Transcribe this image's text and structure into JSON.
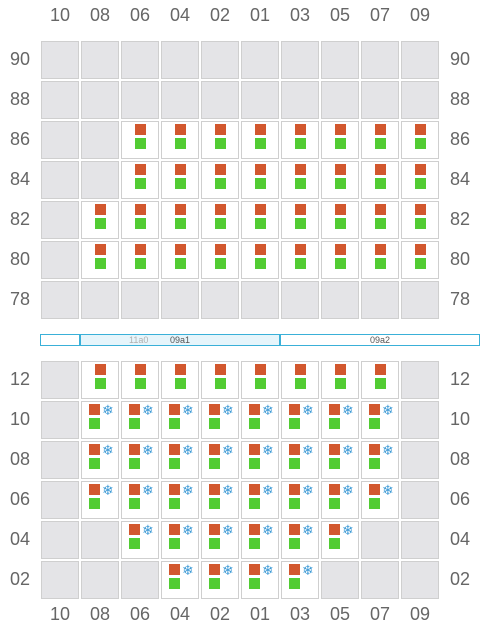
{
  "columns": [
    "10",
    "08",
    "06",
    "04",
    "02",
    "01",
    "03",
    "05",
    "07",
    "09"
  ],
  "deck": {
    "rows": [
      "90",
      "88",
      "86",
      "84",
      "82",
      "80",
      "78"
    ],
    "cells": [
      [
        0,
        0,
        0,
        0,
        0,
        0,
        0,
        0,
        0,
        0
      ],
      [
        0,
        0,
        0,
        0,
        0,
        0,
        0,
        0,
        0,
        0
      ],
      [
        0,
        0,
        1,
        1,
        1,
        1,
        1,
        1,
        1,
        1
      ],
      [
        0,
        0,
        1,
        1,
        1,
        1,
        1,
        1,
        1,
        1
      ],
      [
        0,
        1,
        1,
        1,
        1,
        1,
        1,
        1,
        1,
        1
      ],
      [
        0,
        1,
        1,
        1,
        1,
        1,
        1,
        1,
        1,
        1
      ],
      [
        0,
        0,
        0,
        0,
        0,
        0,
        0,
        0,
        0,
        0
      ]
    ]
  },
  "bays": [
    {
      "label": "09a1",
      "ghost": "11a0",
      "selected": true
    },
    {
      "label": "09a2",
      "selected": false
    }
  ],
  "hold": {
    "rows": [
      "12",
      "10",
      "08",
      "06",
      "04",
      "02"
    ],
    "cells": [
      [
        0,
        1,
        1,
        1,
        1,
        1,
        1,
        1,
        1,
        0
      ],
      [
        0,
        2,
        2,
        2,
        2,
        2,
        2,
        2,
        2,
        0
      ],
      [
        0,
        2,
        2,
        2,
        2,
        2,
        2,
        2,
        2,
        0
      ],
      [
        0,
        2,
        2,
        2,
        2,
        2,
        2,
        2,
        2,
        0
      ],
      [
        0,
        0,
        2,
        2,
        2,
        2,
        2,
        2,
        0,
        0
      ],
      [
        0,
        0,
        0,
        2,
        2,
        2,
        2,
        0,
        0,
        0
      ]
    ]
  },
  "legend_colors": {
    "upper": "#d2572e",
    "lower": "#52cc33",
    "reefer": "#3d9ad6",
    "empty_slot": "#e4e4e7"
  },
  "icons": {
    "reefer": "snowflake-icon"
  },
  "reefer_glyph": "❄"
}
